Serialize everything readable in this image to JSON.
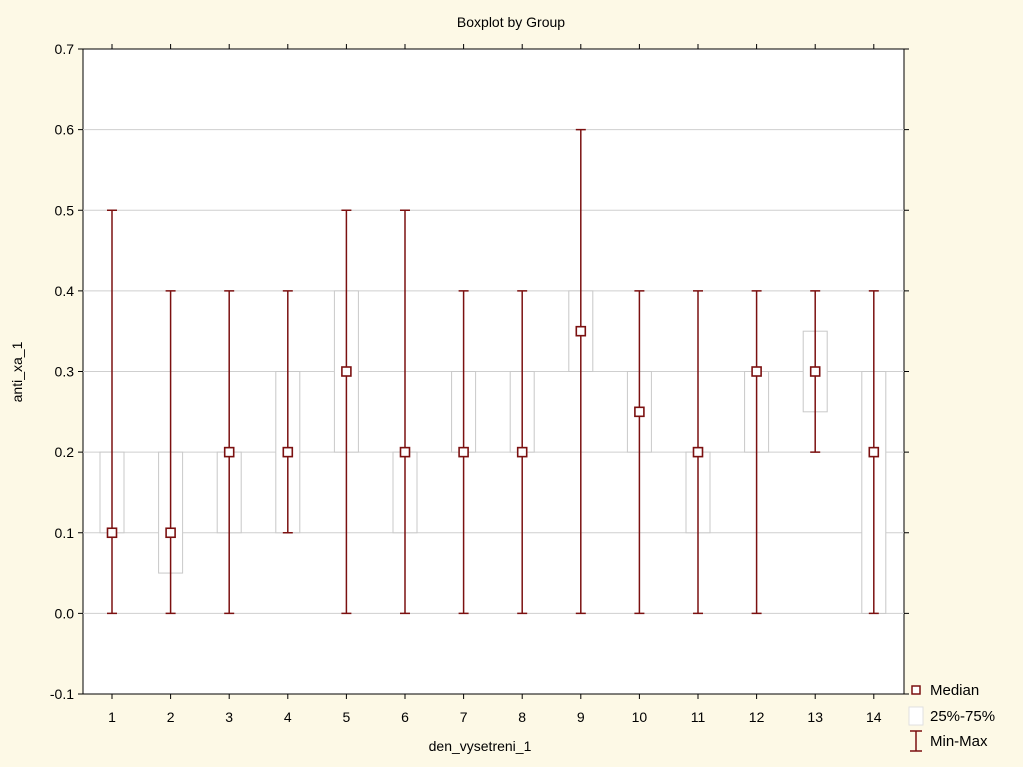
{
  "chart_data": {
    "type": "box",
    "title": "Boxplot by Group",
    "xlabel": "den_vysetreni_1",
    "ylabel": "anti_xa_1",
    "ylim": [
      -0.1,
      0.7
    ],
    "yticks": [
      "-0.1",
      "0.0",
      "0.1",
      "0.2",
      "0.3",
      "0.4",
      "0.5",
      "0.6",
      "0.7"
    ],
    "grid": true,
    "categories": [
      "1",
      "2",
      "3",
      "4",
      "5",
      "6",
      "7",
      "8",
      "9",
      "10",
      "11",
      "12",
      "13",
      "14"
    ],
    "groups": [
      {
        "category": "1",
        "min": 0.0,
        "q1": 0.1,
        "median": 0.1,
        "q3": 0.2,
        "max": 0.5
      },
      {
        "category": "2",
        "min": 0.0,
        "q1": 0.05,
        "median": 0.1,
        "q3": 0.2,
        "max": 0.4
      },
      {
        "category": "3",
        "min": 0.0,
        "q1": 0.1,
        "median": 0.2,
        "q3": 0.2,
        "max": 0.4
      },
      {
        "category": "4",
        "min": 0.1,
        "q1": 0.1,
        "median": 0.2,
        "q3": 0.3,
        "max": 0.4
      },
      {
        "category": "5",
        "min": 0.0,
        "q1": 0.2,
        "median": 0.3,
        "q3": 0.4,
        "max": 0.5
      },
      {
        "category": "6",
        "min": 0.0,
        "q1": 0.1,
        "median": 0.2,
        "q3": 0.2,
        "max": 0.5
      },
      {
        "category": "7",
        "min": 0.0,
        "q1": 0.2,
        "median": 0.2,
        "q3": 0.3,
        "max": 0.4
      },
      {
        "category": "8",
        "min": 0.0,
        "q1": 0.2,
        "median": 0.2,
        "q3": 0.3,
        "max": 0.4
      },
      {
        "category": "9",
        "min": 0.0,
        "q1": 0.3,
        "median": 0.35,
        "q3": 0.4,
        "max": 0.6
      },
      {
        "category": "10",
        "min": 0.0,
        "q1": 0.2,
        "median": 0.25,
        "q3": 0.3,
        "max": 0.4
      },
      {
        "category": "11",
        "min": 0.0,
        "q1": 0.1,
        "median": 0.2,
        "q3": 0.2,
        "max": 0.4
      },
      {
        "category": "12",
        "min": 0.0,
        "q1": 0.2,
        "median": 0.3,
        "q3": 0.3,
        "max": 0.4
      },
      {
        "category": "13",
        "min": 0.2,
        "q1": 0.25,
        "median": 0.3,
        "q3": 0.35,
        "max": 0.4
      },
      {
        "category": "14",
        "min": 0.0,
        "q1": 0.0,
        "median": 0.2,
        "q3": 0.3,
        "max": 0.4
      }
    ],
    "legend": {
      "position": "bottom-right",
      "items": [
        {
          "label": "Median",
          "symbol": "square"
        },
        {
          "label": "25%-75%",
          "symbol": "box"
        },
        {
          "label": "Min-Max",
          "symbol": "whisker"
        }
      ]
    },
    "colors": {
      "whisker": "#7b1010",
      "median": "#7b1010",
      "box_fill": "#ffffff",
      "box_stroke": "#c8c8c8",
      "plot_bg": "#ffffff",
      "page_bg": "#fdf9e6",
      "grid": "#cfcfcf"
    }
  }
}
